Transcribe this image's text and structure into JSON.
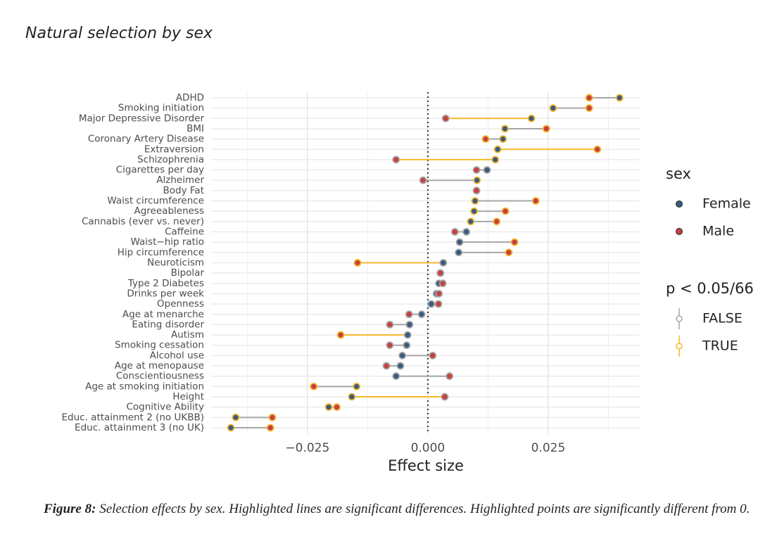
{
  "chart_data": {
    "type": "dumbbell",
    "title": "Natural selection by sex",
    "xlabel": "Effect size",
    "categories": [
      "ADHD",
      "Smoking initiation",
      "Major Depressive Disorder",
      "BMI",
      "Coronary Artery Disease",
      "Extraversion",
      "Schizophrenia",
      "Cigarettes per day",
      "Alzheimer",
      "Body Fat",
      "Waist circumference",
      "Agreeableness",
      "Cannabis (ever vs. never)",
      "Caffeine",
      "Waist−hip ratio",
      "Hip circumference",
      "Neuroticism",
      "Bipolar",
      "Type 2 Diabetes",
      "Drinks per week",
      "Openness",
      "Age at menarche",
      "Eating disorder",
      "Autism",
      "Smoking cessation",
      "Alcohol use",
      "Age at menopause",
      "Conscientiousness",
      "Age at smoking initiation",
      "Height",
      "Cognitive Ability",
      "Educ. attainment 2 (no UKBB)",
      "Educ. attainment 3 (no UK)"
    ],
    "series": [
      {
        "name": "Female",
        "color": "#3b5b7f",
        "values": [
          0.0398,
          0.026,
          0.0215,
          0.016,
          0.0156,
          0.0145,
          0.014,
          0.0123,
          0.0102,
          0.0101,
          0.0098,
          0.0096,
          0.0089,
          0.008,
          0.0066,
          0.0064,
          0.0032,
          0.0026,
          0.0023,
          0.0018,
          0.0007,
          -0.0013,
          -0.0038,
          -0.0042,
          -0.0044,
          -0.0053,
          -0.0057,
          -0.0066,
          -0.0148,
          -0.0158,
          -0.0206,
          -0.0399,
          -0.0409
        ],
        "significant_from_zero": [
          true,
          true,
          true,
          true,
          true,
          true,
          true,
          false,
          true,
          false,
          true,
          true,
          true,
          false,
          false,
          false,
          false,
          false,
          false,
          false,
          false,
          false,
          false,
          false,
          false,
          false,
          false,
          false,
          true,
          true,
          true,
          true,
          true
        ]
      },
      {
        "name": "Male",
        "color": "#c8403f",
        "values": [
          0.0335,
          0.0335,
          0.0037,
          0.0246,
          0.012,
          0.0352,
          -0.0066,
          0.0101,
          -0.001,
          0.0101,
          0.0224,
          0.0161,
          0.0143,
          0.0056,
          0.018,
          0.0168,
          -0.0146,
          0.0026,
          0.0031,
          0.0023,
          0.0022,
          -0.0039,
          -0.0079,
          -0.0181,
          -0.0079,
          0.001,
          -0.0086,
          0.0045,
          -0.0237,
          0.0035,
          -0.0189,
          -0.0323,
          -0.0327
        ],
        "significant_from_zero": [
          true,
          true,
          false,
          true,
          true,
          true,
          false,
          false,
          false,
          false,
          true,
          true,
          true,
          false,
          true,
          true,
          true,
          false,
          false,
          false,
          false,
          false,
          false,
          true,
          false,
          false,
          false,
          false,
          true,
          false,
          true,
          true,
          true
        ]
      }
    ],
    "difference_significant": [
      false,
      false,
      true,
      false,
      false,
      true,
      true,
      false,
      false,
      false,
      false,
      false,
      false,
      false,
      false,
      false,
      true,
      false,
      false,
      false,
      false,
      false,
      false,
      true,
      false,
      false,
      false,
      false,
      false,
      true,
      false,
      false,
      false
    ],
    "xlim": [
      -0.045,
      0.044
    ],
    "xticks": [
      {
        "value": -0.025,
        "label": "−0.025"
      },
      {
        "value": 0,
        "label": "0.000"
      },
      {
        "value": 0.025,
        "label": "0.025"
      }
    ],
    "minor_xticks": [
      -0.0375,
      -0.0125,
      0.0125,
      0.0375
    ],
    "reference_line": 0,
    "grid": true,
    "legend": {
      "title": "sex"
    },
    "significance_legend": {
      "title": "p < 0.05/66",
      "entries": [
        {
          "label": "FALSE",
          "color": "#a6a6a6"
        },
        {
          "label": "TRUE",
          "color": "#f5b82e"
        }
      ]
    },
    "caption": {
      "label": "Figure 8:",
      "text": "Selection effects by sex. Highlighted lines are significant differences. Highlighted points are significantly different from 0."
    }
  }
}
